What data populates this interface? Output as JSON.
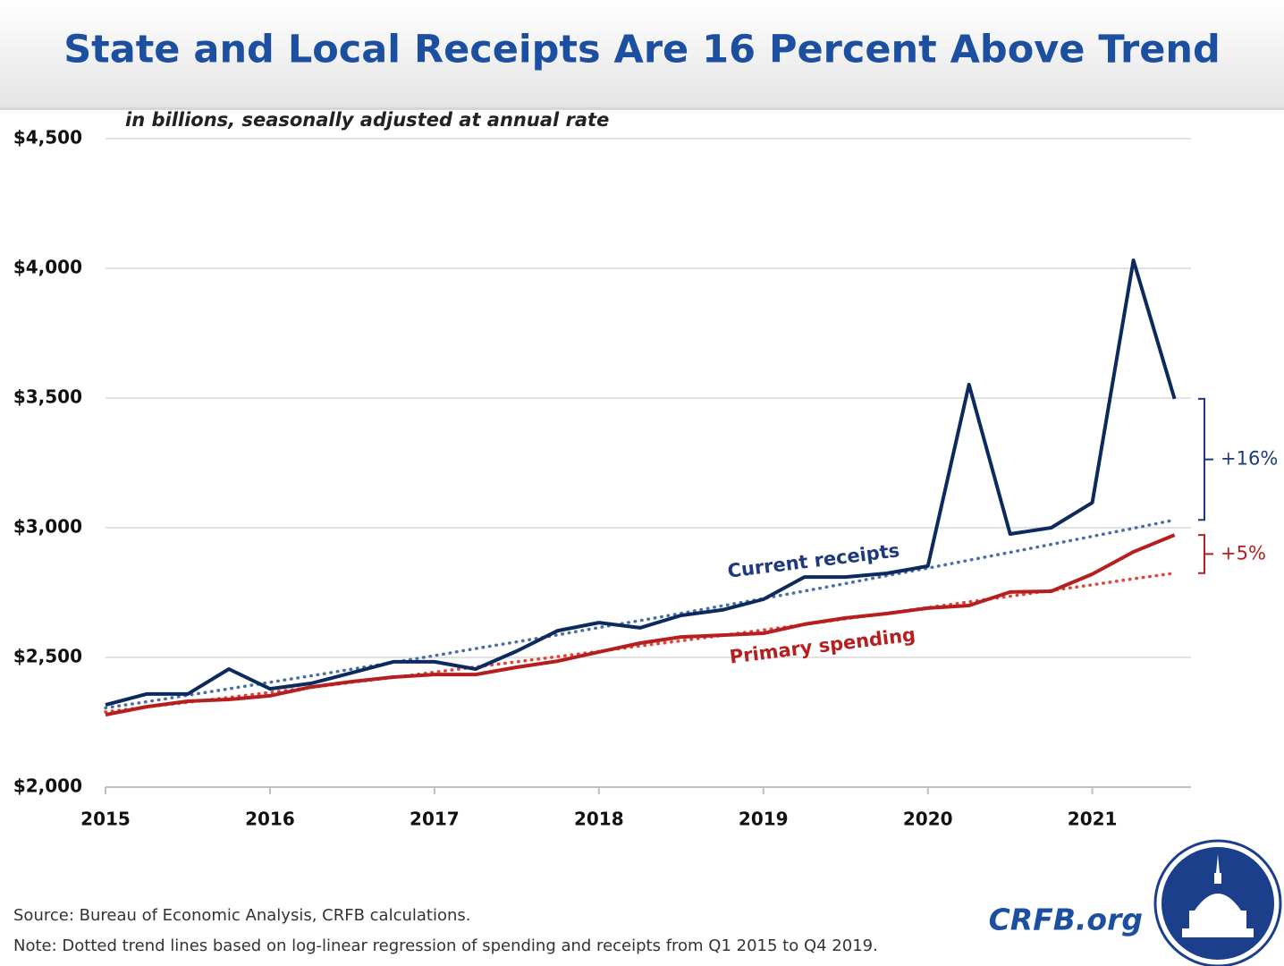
{
  "chart_data": {
    "type": "line",
    "title": "State and Local Receipts Are 16 Percent Above Trend",
    "subtitle": "in billions, seasonally adjusted at annual rate",
    "x": [
      2015,
      2015.25,
      2015.5,
      2015.75,
      2016,
      2016.25,
      2016.5,
      2016.75,
      2017,
      2017.25,
      2017.5,
      2017.75,
      2018,
      2018.25,
      2018.5,
      2018.75,
      2019,
      2019.25,
      2019.5,
      2019.75,
      2020,
      2020.25,
      2020.5,
      2020.75,
      2021,
      2021.25,
      2021.5
    ],
    "xlim": [
      2015,
      2021.6
    ],
    "xticks": [
      2015,
      2016,
      2017,
      2018,
      2019,
      2020,
      2021
    ],
    "ylim": [
      2000,
      4500
    ],
    "yticks": [
      {
        "value": 2000,
        "label": "$2,000"
      },
      {
        "value": 2500,
        "label": "$2,500"
      },
      {
        "value": 3000,
        "label": "$3,000"
      },
      {
        "value": 3500,
        "label": "$3,500"
      },
      {
        "value": 4000,
        "label": "$4,000"
      },
      {
        "value": 4500,
        "label": "$4,500"
      }
    ],
    "grid": true,
    "series": [
      {
        "name": "Current receipts",
        "color": "#0d2a5e",
        "label_color": "#1f3a7a",
        "trend_color": "#4a6fa5",
        "values": [
          2317,
          2359,
          2359,
          2455,
          2379,
          2400,
          2441,
          2483,
          2483,
          2455,
          2524,
          2603,
          2634,
          2614,
          2662,
          2683,
          2724,
          2810,
          2810,
          2824,
          2852,
          3552,
          2976,
          3000,
          3097,
          4031,
          3497
        ],
        "trend": [
          2305,
          2329,
          2354,
          2379,
          2404,
          2429,
          2455,
          2481,
          2507,
          2534,
          2560,
          2587,
          2615,
          2642,
          2670,
          2699,
          2727,
          2756,
          2785,
          2815,
          2844,
          2875,
          2905,
          2936,
          2967,
          2998,
          3030
        ],
        "gap_label": "+16%"
      },
      {
        "name": "Primary spending",
        "color": "#b51f1f",
        "label_color": "#b51f1f",
        "trend_color": "#e2433b",
        "values": [
          2279,
          2310,
          2331,
          2338,
          2352,
          2386,
          2407,
          2424,
          2434,
          2434,
          2462,
          2486,
          2521,
          2555,
          2579,
          2586,
          2593,
          2628,
          2652,
          2669,
          2690,
          2700,
          2752,
          2755,
          2821,
          2907,
          2972
        ],
        "trend": [
          2290,
          2309,
          2327,
          2346,
          2365,
          2384,
          2404,
          2423,
          2443,
          2463,
          2483,
          2503,
          2523,
          2544,
          2564,
          2585,
          2606,
          2627,
          2649,
          2670,
          2692,
          2714,
          2736,
          2758,
          2780,
          2803,
          2825
        ],
        "gap_label": "+5%"
      }
    ],
    "source": "Source: Bureau of Economic Analysis, CRFB calculations.",
    "note": "Note: Dotted trend lines based on log-linear regression of spending and receipts from Q1 2015 to Q4 2019.",
    "brand": "CRFB.org"
  }
}
